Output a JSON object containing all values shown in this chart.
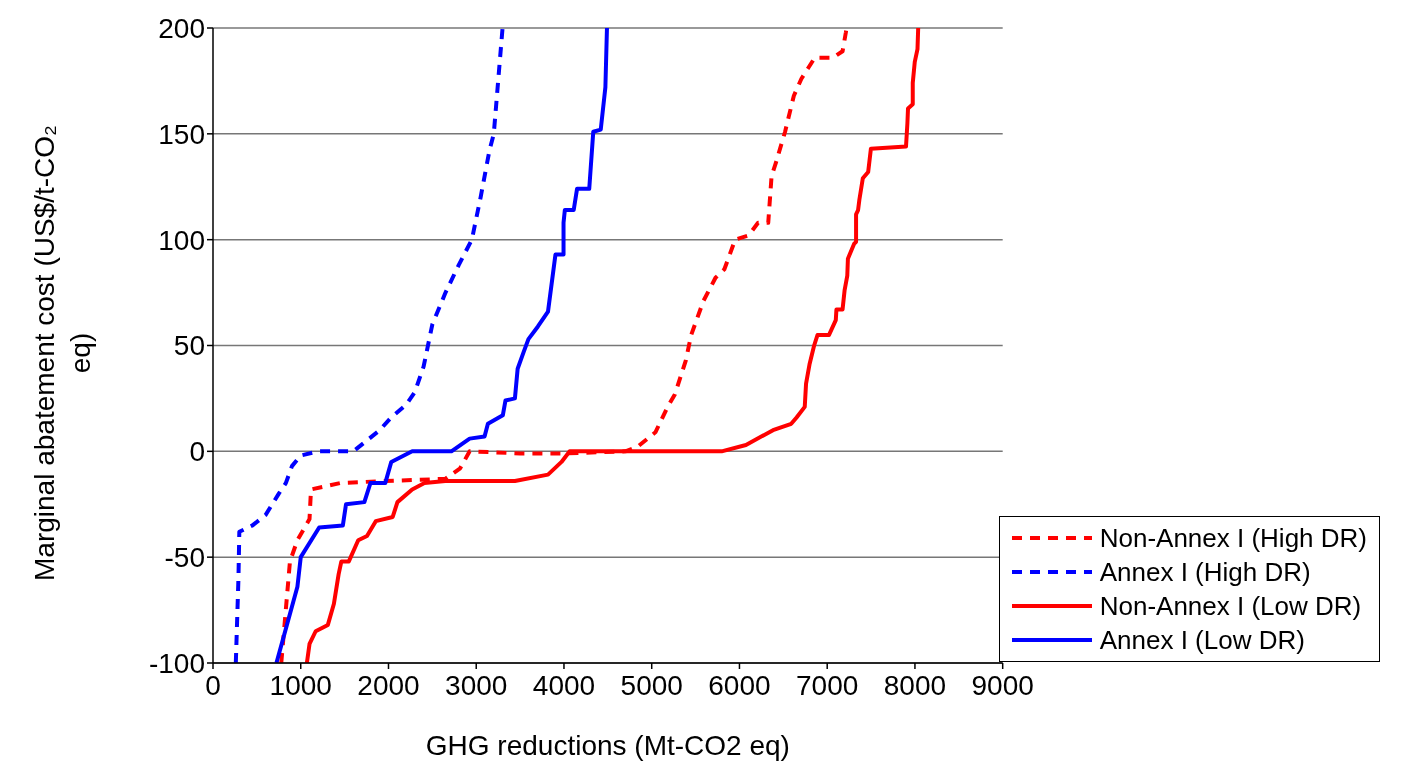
{
  "chart_data": {
    "type": "line",
    "xlabel": "GHG reductions (Mt-CO2 eq)",
    "ylabel": "Marginal abatement cost (US$/t-CO₂ eq)",
    "xlim": [
      0,
      9000
    ],
    "xticks": [
      0,
      1000,
      2000,
      3000,
      4000,
      5000,
      6000,
      7000,
      8000,
      9000
    ],
    "ylim": [
      -100,
      200
    ],
    "yticks": [
      -100,
      -50,
      0,
      50,
      100,
      150,
      200
    ],
    "grid": "y",
    "legend": "bottom right",
    "marker": "none",
    "series": [
      {
        "name": "Non-Annex I (High DR)",
        "color": "#ff0000",
        "line_style": "dashed",
        "x": [
          778,
          877,
          962,
          1100,
          1117,
          1448,
          1963,
          2648,
          2817,
          2925,
          3500,
          4000,
          4700,
          4834,
          5042,
          5181,
          5265,
          5389,
          5450,
          5589,
          5727,
          5828,
          5951,
          6105,
          6212,
          6328,
          6366,
          6413,
          6520,
          6620,
          6706,
          6782,
          6859,
          7067,
          7175,
          7213,
          7220
        ],
        "values": [
          -100,
          -52,
          -42,
          -32,
          -18,
          -15,
          -14,
          -13,
          -8,
          0,
          -1,
          -1,
          0,
          2,
          9,
          21,
          27,
          43,
          55,
          71,
          82,
          86,
          100,
          102,
          108,
          108,
          130,
          136,
          151,
          168,
          176,
          181,
          186,
          186,
          189,
          198,
          200
        ]
      },
      {
        "name": "Annex I (High DR)",
        "color": "#0000ff",
        "line_style": "dashed",
        "x": [
          260,
          290,
          300,
          450,
          600,
          750,
          830,
          900,
          1000,
          1200,
          1600,
          1750,
          1900,
          2030,
          2200,
          2300,
          2400,
          2500,
          2650,
          2800,
          2950,
          3050,
          3150,
          3200,
          3260,
          3300
        ],
        "values": [
          -100,
          -60,
          -38,
          -35,
          -30,
          -20,
          -15,
          -7,
          -2,
          0,
          0,
          5,
          10,
          16,
          22,
          28,
          40,
          60,
          75,
          88,
          100,
          120,
          142,
          150,
          180,
          200
        ]
      },
      {
        "name": "Non-Annex I (Low DR)",
        "color": "#ff0000",
        "line_style": "solid",
        "x": [
          1070,
          1100,
          1170,
          1309,
          1378,
          1432,
          1463,
          1548,
          1655,
          1755,
          1855,
          2048,
          2102,
          2270,
          2410,
          2648,
          3441,
          3818,
          3972,
          4065,
          5797,
          6074,
          6382,
          6590,
          6651,
          6744,
          6759,
          6798,
          6851,
          6890,
          7021,
          7098,
          7105,
          7175,
          7198,
          7229,
          7236,
          7306,
          7329,
          7329,
          7352,
          7367,
          7406,
          7467,
          7498,
          7898,
          7914,
          7921,
          7975,
          7975,
          7998,
          8029,
          8037
        ],
        "values": [
          -100,
          -91,
          -85,
          -82,
          -72,
          -58,
          -52,
          -52,
          -42,
          -40,
          -33,
          -31,
          -24,
          -18,
          -15,
          -14,
          -14,
          -11,
          -5,
          0,
          0,
          3,
          10,
          13,
          16,
          21,
          32,
          41,
          50,
          55,
          55,
          62,
          67,
          67,
          76,
          83,
          91,
          98,
          99,
          112,
          114,
          119,
          129,
          132,
          143,
          144,
          155,
          162,
          164,
          174,
          184,
          190,
          200
        ]
      },
      {
        "name": "Annex I (Low DR)",
        "color": "#0000ff",
        "line_style": "solid",
        "x": [
          723,
          962,
          1000,
          1210,
          1480,
          1516,
          1725,
          1794,
          1963,
          2032,
          2270,
          2717,
          2925,
          3095,
          3133,
          3303,
          3333,
          3441,
          3472,
          3541,
          3595,
          3703,
          3818,
          3903,
          3995,
          3995,
          4010,
          4111,
          4149,
          4288,
          4334,
          4419,
          4472,
          4490
        ],
        "values": [
          -100,
          -64,
          -50,
          -36,
          -35,
          -25,
          -24,
          -15,
          -15,
          -5,
          0,
          0,
          6,
          7,
          13,
          17,
          24,
          25,
          39,
          47,
          53,
          59,
          66,
          93,
          93,
          108,
          114,
          114,
          124,
          124,
          151,
          152,
          172,
          200
        ]
      }
    ]
  }
}
